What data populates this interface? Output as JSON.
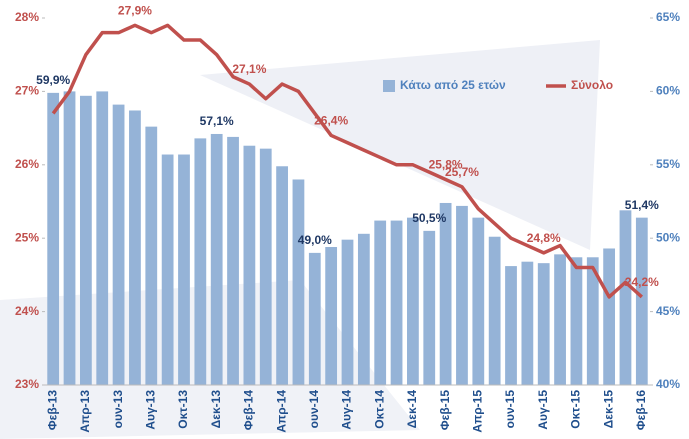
{
  "chart_data": {
    "type": "combo",
    "categories": [
      "Φεβ-13",
      null,
      "Απρ-13",
      null,
      "ουν-13",
      null,
      "Αυγ-13",
      null,
      "Οκτ-13",
      null,
      "Δεκ-13",
      null,
      "Φεβ-14",
      null,
      "Απρ-14",
      null,
      "ουν-14",
      null,
      "Αυγ-14",
      null,
      "Οκτ-14",
      null,
      "Δεκ-14",
      null,
      "Φεβ-15",
      null,
      "Απρ-15",
      null,
      "ουν-15",
      null,
      "Αυγ-15",
      null,
      "Οκτ-15",
      null,
      "Δεκ-15",
      null,
      "Φεβ-16"
    ],
    "series": [
      {
        "name": "Κάτω από 25 ετών",
        "type": "bar",
        "axis": "y2",
        "color": "#95b3d7",
        "values": [
          59.9,
          60.0,
          59.7,
          60.0,
          59.1,
          58.7,
          57.6,
          55.7,
          55.7,
          56.8,
          57.1,
          56.9,
          56.3,
          56.1,
          54.9,
          54.0,
          49.0,
          49.4,
          49.9,
          50.3,
          51.2,
          51.2,
          51.4,
          50.5,
          52.4,
          52.2,
          51.4,
          50.1,
          48.1,
          48.4,
          48.3,
          48.9,
          48.7,
          48.7,
          49.3,
          51.9,
          51.4
        ],
        "value_labels": [
          "59,9%",
          null,
          null,
          null,
          null,
          null,
          null,
          null,
          null,
          null,
          "57,1%",
          null,
          null,
          null,
          null,
          null,
          "49,0%",
          null,
          null,
          null,
          null,
          null,
          null,
          "50,5%",
          null,
          null,
          null,
          null,
          null,
          null,
          null,
          null,
          null,
          null,
          null,
          null,
          "51,4%"
        ]
      },
      {
        "name": "Σύνολο",
        "type": "line",
        "axis": "y",
        "color": "#c0504d",
        "values": [
          26.7,
          27.0,
          27.5,
          27.8,
          27.8,
          27.9,
          27.8,
          27.9,
          27.7,
          27.7,
          27.5,
          27.2,
          27.1,
          26.9,
          27.1,
          27.0,
          26.7,
          26.4,
          26.3,
          26.2,
          26.1,
          26.0,
          26.0,
          25.9,
          25.8,
          25.7,
          25.4,
          25.2,
          25.0,
          24.9,
          24.8,
          24.9,
          24.6,
          24.6,
          24.2,
          24.4,
          24.2
        ],
        "value_labels": [
          null,
          null,
          null,
          null,
          null,
          "27,9%",
          null,
          null,
          null,
          null,
          null,
          null,
          "27,1%",
          null,
          null,
          null,
          null,
          "26,4%",
          null,
          null,
          null,
          null,
          null,
          null,
          "25,8%",
          "25,7%",
          null,
          null,
          null,
          null,
          "24,8%",
          null,
          null,
          null,
          null,
          null,
          "24,2%"
        ]
      }
    ],
    "ylim": [
      23,
      28
    ],
    "yticks": [
      {
        "value": 23,
        "label": "23%"
      },
      {
        "value": 24,
        "label": "24%"
      },
      {
        "value": 25,
        "label": "25%"
      },
      {
        "value": 26,
        "label": "26%"
      },
      {
        "value": 27,
        "label": "27%"
      },
      {
        "value": 28,
        "label": "28%"
      }
    ],
    "y2lim": [
      40,
      65
    ],
    "y2ticks": [
      {
        "value": 40,
        "label": "40%"
      },
      {
        "value": 45,
        "label": "45%"
      },
      {
        "value": 50,
        "label": "50%"
      },
      {
        "value": 55,
        "label": "55%"
      },
      {
        "value": 60,
        "label": "60%"
      },
      {
        "value": 65,
        "label": "65%"
      }
    ],
    "legend": "top-right"
  }
}
